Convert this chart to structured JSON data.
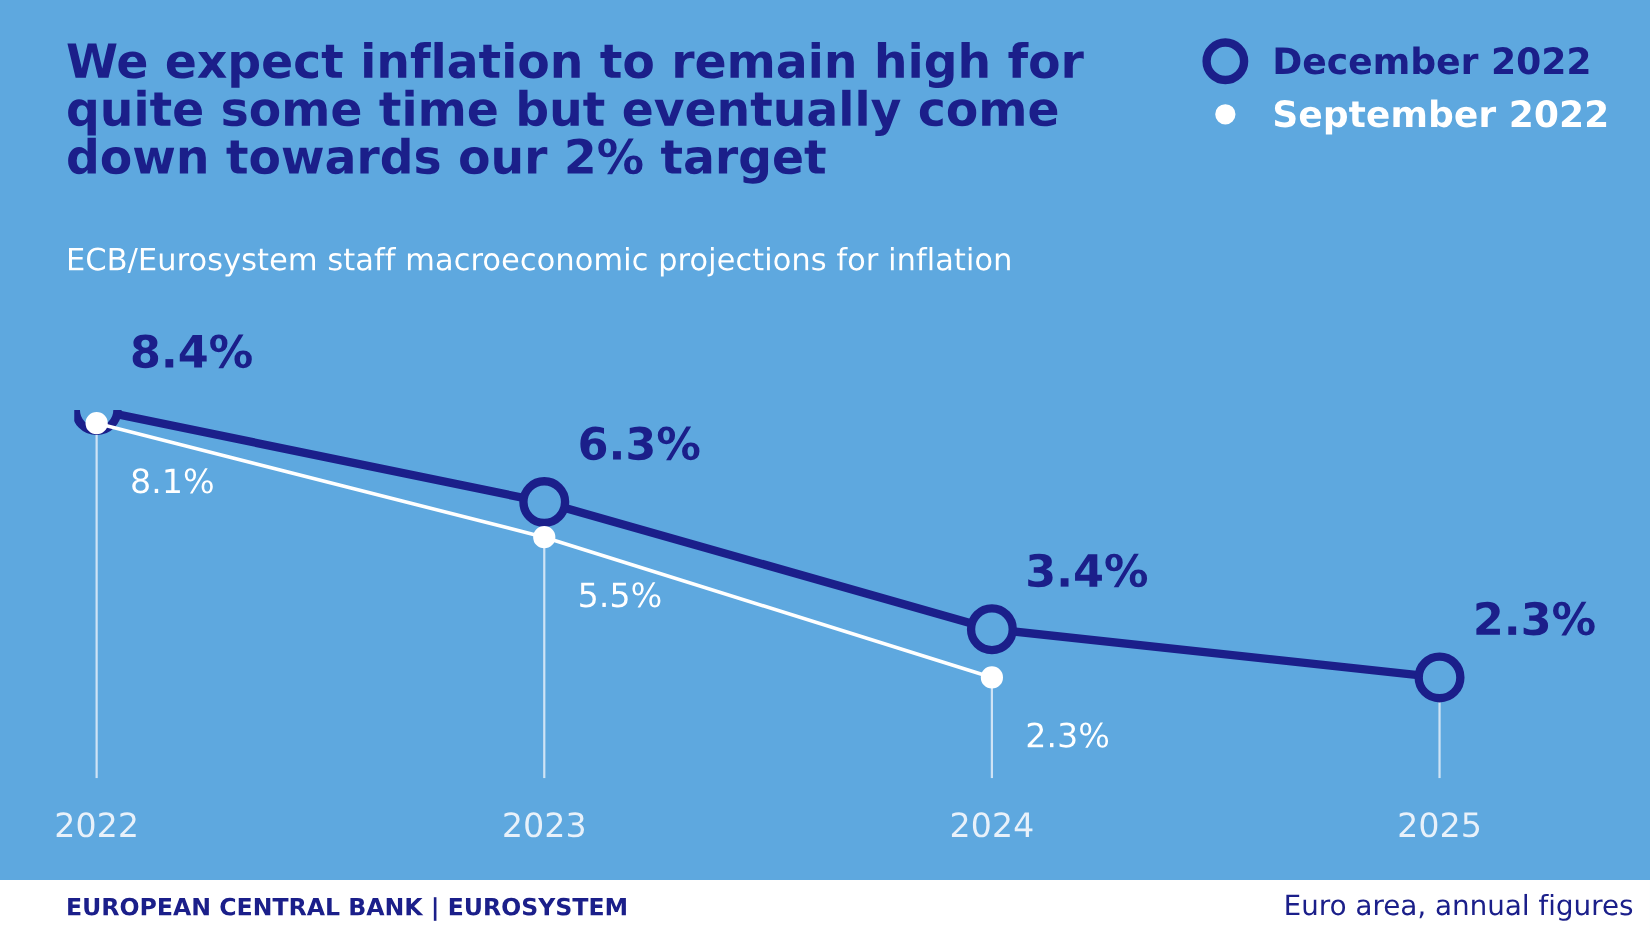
{
  "chart_data": {
    "type": "line",
    "title": "We expect inflation to remain high for\nquite some time but eventually come\ndown towards our 2% target",
    "subtitle": "ECB/Eurosystem staff macroeconomic projections for inflation",
    "categories": [
      "2022",
      "2023",
      "2024",
      "2025"
    ],
    "series": [
      {
        "name": "December 2022",
        "color": "#1b1f8a",
        "values": [
          8.4,
          6.3,
          3.4,
          2.3
        ],
        "value_labels": [
          "8.4%",
          "6.3%",
          "3.4%",
          "2.3%"
        ]
      },
      {
        "name": "September 2022",
        "color": "#ffffff",
        "values": [
          8.1,
          5.5,
          2.3,
          null
        ],
        "value_labels": [
          "8.1%",
          "5.5%",
          "2.3%",
          null
        ]
      }
    ],
    "marker": "circle",
    "line_style": "solid",
    "legend": "top right",
    "grid": "x",
    "annotations": [
      "EUROPEAN CENTRAL BANK | EUROSYSTEM",
      "Euro area, annual figures"
    ]
  }
}
